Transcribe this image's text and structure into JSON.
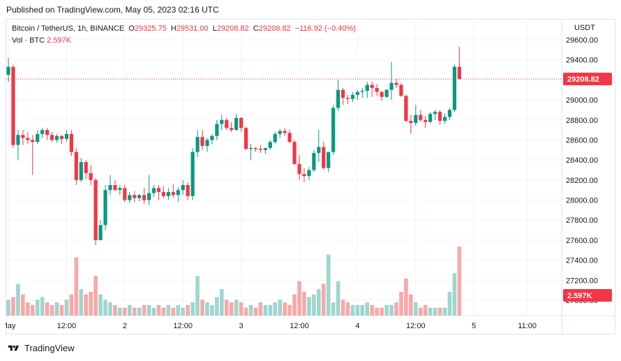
{
  "published": "Published on TradingView.com, May 05, 2023 02:16 UTC",
  "legend": {
    "symbol": "Bitcoin / TetherUS, 1h, BINANCE",
    "open_label": "O",
    "open": "29325.75",
    "high_label": "H",
    "high": "29531.00",
    "low_label": "L",
    "low": "29208.82",
    "close_label": "C",
    "close": "29208.82",
    "change": "−116.92 (−0.40%)"
  },
  "volume_legend": {
    "label": "Vol · BTC",
    "value": "2.597K"
  },
  "currency": "USDT",
  "footer": {
    "brand": "TradingView",
    "logo_icon": "tradingview-logo-icon"
  },
  "colors": {
    "up": "#089981",
    "down": "#f23645",
    "up_volume": "#9ed6cf",
    "down_volume": "#f7a9a7",
    "grid": "#f0f3fa"
  },
  "chart_data": {
    "type": "candlestick",
    "symbol": "BTCUSDT",
    "interval": "1h",
    "ylim": [
      26800,
      29700
    ],
    "y_ticks": [
      27000,
      27200,
      27400,
      27600,
      27800,
      28000,
      28200,
      28400,
      28600,
      28800,
      29000,
      29200,
      29400,
      29600
    ],
    "y_tick_labels": [
      "27000.00",
      "27200.00",
      "27400.00",
      "27600.00",
      "27800.00",
      "28000.00",
      "28200.00",
      "28400.00",
      "28600.00",
      "28800.00",
      "29000.00",
      "29200.00",
      "29400.00",
      "29600.00"
    ],
    "x_tick_labels": [
      {
        "label": "May",
        "index": 0
      },
      {
        "label": "12:00",
        "index": 12
      },
      {
        "label": "2",
        "index": 24
      },
      {
        "label": "12:00",
        "index": 36
      },
      {
        "label": "3",
        "index": 48
      },
      {
        "label": "12:00",
        "index": 60
      },
      {
        "label": "4",
        "index": 72
      },
      {
        "label": "12:00",
        "index": 84
      },
      {
        "label": "5",
        "index": 96
      },
      {
        "label": "11:00",
        "index": 107
      }
    ],
    "last_price": 29208.82,
    "last_price_label": "29208.82",
    "last_volume_label": "2.597K",
    "grid": true,
    "candles": [
      [
        29250,
        29420,
        29180,
        29330,
        0.6
      ],
      [
        29330,
        29350,
        28520,
        28550,
        0.7
      ],
      [
        28550,
        28700,
        28400,
        28650,
        1.2
      ],
      [
        28650,
        28700,
        28550,
        28620,
        0.8
      ],
      [
        28620,
        28680,
        28560,
        28600,
        0.5
      ],
      [
        28600,
        28650,
        28250,
        28580,
        0.4
      ],
      [
        28580,
        28700,
        28560,
        28660,
        0.6
      ],
      [
        28660,
        28720,
        28620,
        28700,
        0.7
      ],
      [
        28700,
        28720,
        28600,
        28650,
        0.5
      ],
      [
        28650,
        28680,
        28580,
        28600,
        0.4
      ],
      [
        28600,
        28660,
        28570,
        28640,
        0.5
      ],
      [
        28640,
        28650,
        28560,
        28610,
        0.4
      ],
      [
        28610,
        28700,
        28580,
        28660,
        0.6
      ],
      [
        28660,
        28700,
        28440,
        28480,
        0.8
      ],
      [
        28480,
        28520,
        28150,
        28200,
        2.2
      ],
      [
        28200,
        28420,
        28180,
        28380,
        1.0
      ],
      [
        28380,
        28400,
        28210,
        28270,
        0.8
      ],
      [
        28270,
        28350,
        28150,
        28200,
        0.9
      ],
      [
        28200,
        28220,
        27550,
        27600,
        1.5
      ],
      [
        27600,
        27800,
        27600,
        27750,
        0.8
      ],
      [
        27750,
        28150,
        27700,
        28100,
        0.6
      ],
      [
        28100,
        28250,
        28050,
        28150,
        0.5
      ],
      [
        28150,
        28200,
        28090,
        28100,
        0.4
      ],
      [
        28100,
        28150,
        28050,
        28120,
        0.3
      ],
      [
        28120,
        28150,
        27980,
        28000,
        0.3
      ],
      [
        28000,
        28080,
        27970,
        28050,
        0.4
      ],
      [
        28050,
        28090,
        27980,
        28020,
        0.3
      ],
      [
        28020,
        28060,
        27990,
        28050,
        0.3
      ],
      [
        28050,
        28120,
        27960,
        28000,
        0.4
      ],
      [
        28000,
        28250,
        27950,
        28070,
        0.4
      ],
      [
        28070,
        28150,
        28030,
        28120,
        0.3
      ],
      [
        28120,
        28150,
        28000,
        28080,
        0.4
      ],
      [
        28080,
        28140,
        28020,
        28040,
        0.3
      ],
      [
        28040,
        28120,
        28000,
        28080,
        0.4
      ],
      [
        28080,
        28160,
        28020,
        28050,
        0.3
      ],
      [
        28050,
        28130,
        27980,
        28100,
        0.4
      ],
      [
        28100,
        28200,
        28050,
        28150,
        0.3
      ],
      [
        28150,
        28180,
        28000,
        28040,
        0.4
      ],
      [
        28040,
        28520,
        28000,
        28480,
        0.5
      ],
      [
        28480,
        28700,
        28430,
        28630,
        1.5
      ],
      [
        28630,
        28700,
        28500,
        28540,
        0.6
      ],
      [
        28540,
        28620,
        28480,
        28600,
        0.5
      ],
      [
        28600,
        28660,
        28560,
        28640,
        0.4
      ],
      [
        28640,
        28800,
        28600,
        28760,
        0.7
      ],
      [
        28760,
        28850,
        28700,
        28800,
        1.0
      ],
      [
        28800,
        28820,
        28700,
        28720,
        0.6
      ],
      [
        28720,
        28780,
        28680,
        28700,
        0.5
      ],
      [
        28700,
        28860,
        28690,
        28820,
        0.6
      ],
      [
        28820,
        28830,
        28680,
        28720,
        0.5
      ],
      [
        28720,
        28730,
        28500,
        28510,
        0.3
      ],
      [
        28510,
        28560,
        28400,
        28520,
        0.4
      ],
      [
        28520,
        28530,
        28480,
        28510,
        0.3
      ],
      [
        28510,
        28550,
        28470,
        28500,
        0.5
      ],
      [
        28500,
        28520,
        28460,
        28520,
        0.4
      ],
      [
        28520,
        28600,
        28500,
        28580,
        0.4
      ],
      [
        28580,
        28680,
        28560,
        28660,
        0.5
      ],
      [
        28660,
        28710,
        28620,
        28690,
        0.6
      ],
      [
        28690,
        28720,
        28640,
        28670,
        0.5
      ],
      [
        28670,
        28700,
        28570,
        28580,
        0.4
      ],
      [
        28580,
        28600,
        28350,
        28360,
        0.8
      ],
      [
        28360,
        28450,
        28200,
        28260,
        1.3
      ],
      [
        28260,
        28320,
        28180,
        28240,
        0.9
      ],
      [
        28240,
        28330,
        28200,
        28300,
        0.7
      ],
      [
        28300,
        28500,
        28280,
        28470,
        0.8
      ],
      [
        28470,
        28700,
        28380,
        28530,
        1.0
      ],
      [
        28530,
        28580,
        28300,
        28320,
        1.2
      ],
      [
        28320,
        28480,
        28280,
        28480,
        2.3
      ],
      [
        28480,
        28950,
        28450,
        28920,
        0.5
      ],
      [
        28920,
        29200,
        28890,
        29100,
        1.3
      ],
      [
        29100,
        29120,
        28950,
        29020,
        0.6
      ],
      [
        29020,
        29050,
        28960,
        29010,
        0.5
      ],
      [
        29010,
        29080,
        28980,
        29050,
        0.4
      ],
      [
        29050,
        29100,
        29000,
        29080,
        0.4
      ],
      [
        29080,
        29120,
        29020,
        29090,
        0.4
      ],
      [
        29090,
        29180,
        29020,
        29150,
        0.5
      ],
      [
        29150,
        29180,
        29030,
        29120,
        0.4
      ],
      [
        29120,
        29160,
        29040,
        29080,
        0.3
      ],
      [
        29080,
        29090,
        28990,
        29030,
        0.3
      ],
      [
        29030,
        29110,
        29020,
        29100,
        0.4
      ],
      [
        29100,
        29380,
        29000,
        29170,
        0.4
      ],
      [
        29170,
        29210,
        29120,
        29150,
        0.5
      ],
      [
        29150,
        29170,
        29030,
        29040,
        0.9
      ],
      [
        29040,
        29050,
        28780,
        28790,
        1.4
      ],
      [
        28790,
        28850,
        28660,
        28770,
        0.8
      ],
      [
        28770,
        28950,
        28740,
        28850,
        0.5
      ],
      [
        28850,
        28900,
        28780,
        28800,
        0.3
      ],
      [
        28800,
        28840,
        28720,
        28780,
        0.4
      ],
      [
        28780,
        28880,
        28770,
        28860,
        0.3
      ],
      [
        28860,
        28900,
        28800,
        28880,
        0.3
      ],
      [
        28880,
        28900,
        28750,
        28790,
        0.3
      ],
      [
        28790,
        28860,
        28760,
        28830,
        0.3
      ],
      [
        28830,
        28920,
        28800,
        28900,
        0.9
      ],
      [
        28900,
        29350,
        28880,
        29330,
        1.6
      ],
      [
        29330,
        29530,
        29200,
        29208.82,
        2.597
      ]
    ]
  }
}
